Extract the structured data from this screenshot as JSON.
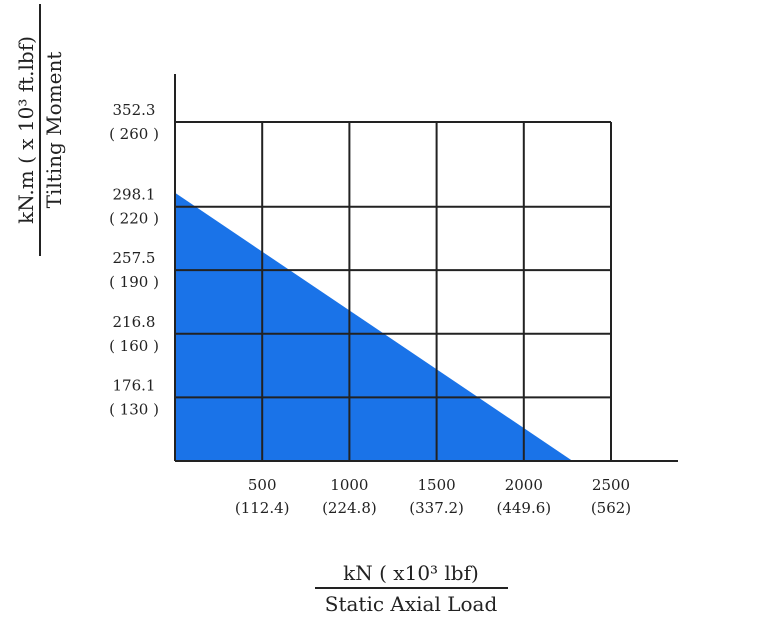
{
  "chart_data": {
    "type": "area",
    "fill_color": "#1a73e8",
    "grid": true,
    "xlim": [
      0,
      2500
    ],
    "ylim": [
      135.4,
      352.3
    ],
    "x_ticks": [
      {
        "value": 500,
        "label": "500",
        "sublabel": "(112.4)"
      },
      {
        "value": 1000,
        "label": "1000",
        "sublabel": "(224.8)"
      },
      {
        "value": 1500,
        "label": "1500",
        "sublabel": "(337.2)"
      },
      {
        "value": 2000,
        "label": "2000",
        "sublabel": "(449.6)"
      },
      {
        "value": 2500,
        "label": "2500",
        "sublabel": "(562)"
      }
    ],
    "y_ticks": [
      {
        "value": 352.3,
        "label": "352.3",
        "sublabel": "( 260 )"
      },
      {
        "value": 298.1,
        "label": "298.1",
        "sublabel": "( 220 )"
      },
      {
        "value": 257.5,
        "label": "257.5",
        "sublabel": "( 190 )"
      },
      {
        "value": 216.8,
        "label": "216.8",
        "sublabel": "( 160 )"
      },
      {
        "value": 176.1,
        "label": "176.1",
        "sublabel": "( 130 )"
      }
    ],
    "series": [
      {
        "x": [
          0,
          2280
        ],
        "y": [
          307,
          135.4
        ]
      }
    ],
    "xlabel": {
      "unit_html": "kN ( x10³ lbf)",
      "title": "Static Axial Load"
    },
    "ylabel": {
      "unit_html": "kN.m ( x 10³  ft.lbf)",
      "title": "Tilting Moment"
    }
  }
}
